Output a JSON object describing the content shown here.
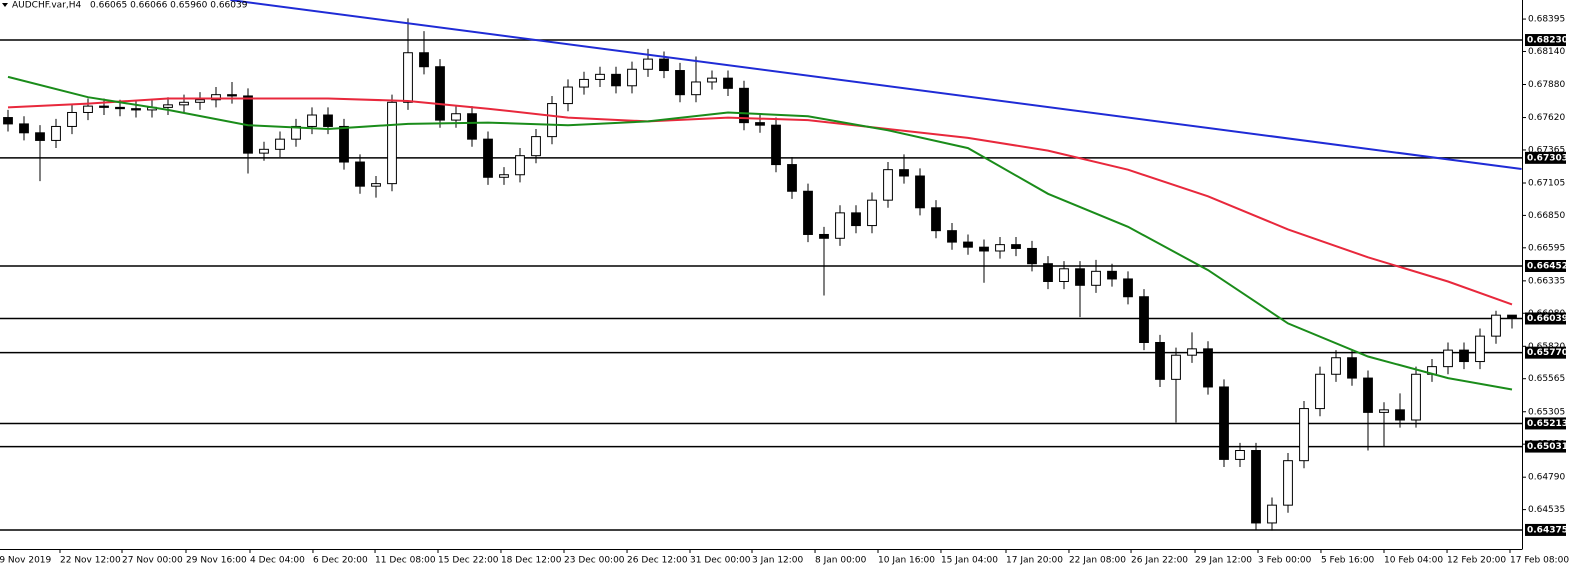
{
  "chart_data": {
    "type": "candlestick",
    "title": "AUDCHF.var,H4",
    "subtitle": "0.66065 0.66066 0.65960 0.66039",
    "up_color": "#ffffff",
    "down_color": "#000000",
    "open": [
      0.6762,
      0.6757,
      0.675,
      0.6744,
      0.6755,
      0.6766,
      0.6771,
      0.677,
      0.6769,
      0.6768,
      0.677,
      0.6772,
      0.6774,
      0.6776,
      0.678,
      0.6779,
      0.6734,
      0.6737,
      0.6745,
      0.6755,
      0.6764,
      0.6755,
      0.6727,
      0.6708,
      0.671,
      0.6774,
      0.6813,
      0.6802,
      0.676,
      0.6765,
      0.6745,
      0.6715,
      0.6717,
      0.6732,
      0.6747,
      0.6773,
      0.6786,
      0.6792,
      0.6796,
      0.6787,
      0.68,
      0.6808,
      0.6799,
      0.678,
      0.679,
      0.6793,
      0.6785,
      0.6758,
      0.6756,
      0.6725,
      0.6704,
      0.667,
      0.6667,
      0.6687,
      0.6677,
      0.6697,
      0.6721,
      0.6716,
      0.6691,
      0.6673,
      0.6664,
      0.666,
      0.6657,
      0.6662,
      0.6659,
      0.6647,
      0.6633,
      0.6643,
      0.663,
      0.6641,
      0.6635,
      0.6621,
      0.6585,
      0.6556,
      0.6575,
      0.658,
      0.655,
      0.6493,
      0.65,
      0.6443,
      0.6457,
      0.6492,
      0.6533,
      0.656,
      0.6573,
      0.6557,
      0.653,
      0.6532,
      0.6524,
      0.656,
      0.6566,
      0.6579,
      0.657,
      0.659,
      0.66065
    ],
    "high": [
      0.6768,
      0.6763,
      0.6756,
      0.6761,
      0.6772,
      0.6777,
      0.6777,
      0.6776,
      0.6775,
      0.6776,
      0.6778,
      0.678,
      0.6782,
      0.6786,
      0.679,
      0.6785,
      0.6743,
      0.6751,
      0.6761,
      0.677,
      0.677,
      0.6761,
      0.6733,
      0.6716,
      0.678,
      0.684,
      0.683,
      0.6808,
      0.6771,
      0.6771,
      0.6751,
      0.6723,
      0.6738,
      0.6753,
      0.6779,
      0.6792,
      0.6798,
      0.6802,
      0.6802,
      0.6806,
      0.6816,
      0.6814,
      0.6805,
      0.681,
      0.6799,
      0.6799,
      0.6791,
      0.6764,
      0.6762,
      0.6731,
      0.671,
      0.6676,
      0.6693,
      0.6693,
      0.6703,
      0.6727,
      0.6733,
      0.6722,
      0.6697,
      0.6679,
      0.667,
      0.6666,
      0.6668,
      0.6668,
      0.6665,
      0.6653,
      0.6649,
      0.6649,
      0.665,
      0.6647,
      0.6641,
      0.6627,
      0.6591,
      0.6581,
      0.6593,
      0.6586,
      0.6556,
      0.6506,
      0.6506,
      0.6463,
      0.6498,
      0.6539,
      0.6566,
      0.6579,
      0.6579,
      0.6563,
      0.6538,
      0.6545,
      0.6566,
      0.6572,
      0.6585,
      0.6585,
      0.6596,
      0.661,
      0.66066
    ],
    "low": [
      0.6751,
      0.6744,
      0.6712,
      0.6738,
      0.6749,
      0.676,
      0.6764,
      0.6763,
      0.6762,
      0.6762,
      0.6764,
      0.6766,
      0.6768,
      0.677,
      0.6773,
      0.6718,
      0.6728,
      0.6731,
      0.6739,
      0.6749,
      0.6749,
      0.6721,
      0.6702,
      0.6699,
      0.6704,
      0.6768,
      0.6796,
      0.6754,
      0.6754,
      0.6739,
      0.6709,
      0.6709,
      0.6711,
      0.6726,
      0.6741,
      0.6767,
      0.678,
      0.6786,
      0.6781,
      0.6781,
      0.6794,
      0.6793,
      0.6774,
      0.6774,
      0.6784,
      0.6779,
      0.6752,
      0.675,
      0.6719,
      0.6698,
      0.6664,
      0.6622,
      0.6661,
      0.6671,
      0.6671,
      0.6691,
      0.671,
      0.6685,
      0.6667,
      0.6658,
      0.6654,
      0.6632,
      0.6651,
      0.6653,
      0.6641,
      0.6627,
      0.6627,
      0.6605,
      0.6624,
      0.6629,
      0.6615,
      0.6579,
      0.655,
      0.6522,
      0.6569,
      0.6544,
      0.6487,
      0.6487,
      0.64375,
      0.6437,
      0.6451,
      0.6486,
      0.6527,
      0.6554,
      0.6551,
      0.65,
      0.6503,
      0.6518,
      0.6518,
      0.6554,
      0.656,
      0.6564,
      0.6564,
      0.6584,
      0.6596
    ],
    "close": [
      0.6757,
      0.675,
      0.6744,
      0.6755,
      0.6766,
      0.6771,
      0.677,
      0.6769,
      0.6768,
      0.677,
      0.6772,
      0.6774,
      0.6776,
      0.678,
      0.6779,
      0.6734,
      0.6737,
      0.6745,
      0.6755,
      0.6764,
      0.6755,
      0.6727,
      0.6708,
      0.671,
      0.6774,
      0.6813,
      0.6802,
      0.676,
      0.6765,
      0.6745,
      0.6715,
      0.6717,
      0.6732,
      0.6747,
      0.6773,
      0.6786,
      0.6792,
      0.6796,
      0.6787,
      0.68,
      0.6808,
      0.6799,
      0.678,
      0.679,
      0.6793,
      0.6785,
      0.6758,
      0.6756,
      0.6725,
      0.6704,
      0.667,
      0.6667,
      0.6687,
      0.6677,
      0.6697,
      0.6721,
      0.6716,
      0.6691,
      0.6673,
      0.6664,
      0.666,
      0.6657,
      0.6662,
      0.6659,
      0.6647,
      0.6633,
      0.6643,
      0.663,
      0.6641,
      0.6635,
      0.6621,
      0.6585,
      0.6556,
      0.6575,
      0.658,
      0.655,
      0.6493,
      0.65,
      0.6443,
      0.6457,
      0.6492,
      0.6533,
      0.656,
      0.6573,
      0.6557,
      0.653,
      0.6532,
      0.6524,
      0.656,
      0.6566,
      0.6579,
      0.657,
      0.659,
      0.66065,
      0.66039
    ],
    "lines": [
      {
        "color": "#e8283c",
        "x": [
          0,
          5,
          10,
          15,
          20,
          25,
          30,
          35,
          40,
          45,
          50,
          55,
          60,
          65,
          70,
          75,
          80,
          85,
          90,
          94
        ],
        "values": [
          0.677,
          0.6773,
          0.6777,
          0.6777,
          0.6777,
          0.6775,
          0.6769,
          0.6762,
          0.6759,
          0.6762,
          0.676,
          0.6753,
          0.6746,
          0.6736,
          0.6721,
          0.67,
          0.6674,
          0.6652,
          0.6633,
          0.6615
        ]
      },
      {
        "color": "#1a8c1a",
        "x": [
          0,
          5,
          10,
          15,
          20,
          25,
          30,
          35,
          40,
          45,
          50,
          55,
          60,
          65,
          70,
          75,
          80,
          85,
          90,
          94
        ],
        "values": [
          0.6794,
          0.6778,
          0.6768,
          0.6756,
          0.6753,
          0.6757,
          0.6758,
          0.6756,
          0.6759,
          0.6766,
          0.6763,
          0.6752,
          0.6738,
          0.6702,
          0.6676,
          0.6642,
          0.66,
          0.6574,
          0.6557,
          0.6548
        ]
      },
      {
        "color": "#1f2bd6",
        "x": [
          13.9,
          94.6
        ],
        "values": [
          0.68545,
          0.67215
        ]
      }
    ],
    "levels": [
      {
        "value": 0.6823,
        "label": "0.68230"
      },
      0.67303,
      0.66452,
      0.66039,
      {
        "value": 0.6577,
        "label": "0.65770"
      },
      0.65213,
      0.65031,
      0.64375
    ],
    "xlim": [
      -0.5,
      94.625
    ],
    "xticks": [
      {
        "value": -0.9,
        "label": "19 Nov 2019"
      },
      {
        "value": 3.25,
        "label": "22 Nov 12:00"
      },
      {
        "value": 7.125,
        "label": "27 Nov 00:00"
      },
      {
        "value": 11.125,
        "label": "29 Nov 16:00"
      },
      {
        "value": 15.125,
        "label": "4 Dec 04:00"
      },
      {
        "value": 19.06,
        "label": "6 Dec 20:00"
      },
      {
        "value": 22.94,
        "label": "11 Dec 08:00"
      },
      {
        "value": 26.875,
        "label": "15 Dec 22:00"
      },
      {
        "value": 30.81,
        "label": "18 Dec 12:00"
      },
      {
        "value": 34.75,
        "label": "23 Dec 00:00"
      },
      {
        "value": 38.69,
        "label": "26 Dec 12:00"
      },
      {
        "value": 42.625,
        "label": "31 Dec 00:00"
      },
      {
        "value": 46.5,
        "label": "3 Jan 12:00"
      },
      {
        "value": 50.44,
        "label": "8 Jan 00:00"
      },
      {
        "value": 54.375,
        "label": "10 Jan 16:00"
      },
      {
        "value": 58.31,
        "label": "15 Jan 04:00"
      },
      {
        "value": 62.375,
        "label": "17 Jan 20:00"
      },
      {
        "value": 66.31,
        "label": "22 Jan 08:00"
      },
      {
        "value": 70.19,
        "label": "26 Jan 22:00"
      },
      {
        "value": 74.19,
        "label": "29 Jan 12:00"
      },
      {
        "value": 78.125,
        "label": "3 Feb 00:00"
      },
      {
        "value": 82.06,
        "label": "5 Feb 16:00"
      },
      {
        "value": 86,
        "label": "10 Feb 04:00"
      },
      {
        "value": 89.94,
        "label": "12 Feb 20:00"
      },
      {
        "value": 93.875,
        "label": "17 Feb 08:00"
      }
    ],
    "ylim": [
      0.64225,
      0.68545
    ],
    "yticks": [
      0.68395,
      {
        "value": 0.6814,
        "label": "0.68140"
      },
      {
        "value": 0.6788,
        "label": "0.67880"
      },
      {
        "value": 0.6762,
        "label": "0.67620"
      },
      0.67365,
      0.67105,
      {
        "value": 0.6685,
        "label": "0.66850"
      },
      0.66595,
      0.66335,
      {
        "value": 0.6608,
        "label": "0.66080"
      },
      {
        "value": 0.6582,
        "label": "0.65820"
      },
      0.65565,
      0.65305,
      {
        "value": 0.6505,
        "label": "0.65050"
      },
      {
        "value": 0.6479,
        "label": "0.64790"
      },
      0.64535
    ]
  }
}
